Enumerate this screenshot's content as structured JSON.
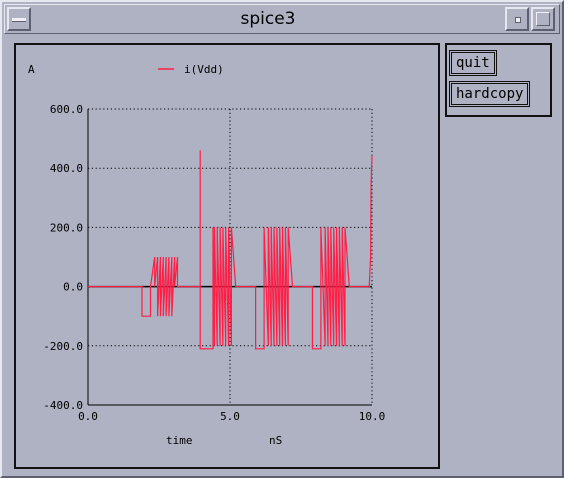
{
  "window": {
    "title": "spice3"
  },
  "buttons": {
    "quit": "quit",
    "hardcopy": "hardcopy"
  },
  "colors": {
    "trace": "#ff1e46",
    "grid": "#000000",
    "background": "#aeb2c3"
  },
  "chart_data": {
    "type": "line",
    "ylabel": "A",
    "xlabel": "time",
    "xunit": "nS",
    "xlim": [
      0,
      10
    ],
    "ylim": [
      -400,
      600
    ],
    "grid": true,
    "legend_position": "top",
    "xticks": [
      "0.0",
      "5.0",
      "10.0"
    ],
    "yticks": [
      "600.0",
      "400.0",
      "200.0",
      "0.0",
      "-200.0",
      "-400.0"
    ],
    "series": [
      {
        "name": "i(Vdd)",
        "x": [
          0,
          1.0,
          1.9,
          1.9,
          2.2,
          2.2,
          2.35,
          2.35,
          2.45,
          2.45,
          2.55,
          2.55,
          2.65,
          2.65,
          2.75,
          2.75,
          2.85,
          2.85,
          2.95,
          2.95,
          3.05,
          3.05,
          3.15,
          3.15,
          3.3,
          3.3,
          3.95,
          3.95,
          3.95,
          4.4,
          4.4,
          4.45,
          4.45,
          4.55,
          4.55,
          4.65,
          4.65,
          4.75,
          4.75,
          4.85,
          4.85,
          4.95,
          4.95,
          5.05,
          5.05,
          5.2,
          5.2,
          5.9,
          5.9,
          6.2,
          6.2,
          6.35,
          6.35,
          6.45,
          6.45,
          6.55,
          6.55,
          6.65,
          6.65,
          6.75,
          6.75,
          6.85,
          6.85,
          6.95,
          6.95,
          7.05,
          7.05,
          7.2,
          7.2,
          7.9,
          7.9,
          8.2,
          8.2,
          8.35,
          8.35,
          8.45,
          8.45,
          8.55,
          8.55,
          8.65,
          8.65,
          8.75,
          8.75,
          8.85,
          8.85,
          8.95,
          8.95,
          9.05,
          9.05,
          9.2,
          9.2,
          9.9,
          9.9,
          9.95,
          9.97,
          10.0
        ],
        "y": [
          0,
          0,
          0,
          -100,
          -100,
          0,
          100,
          0,
          100,
          -100,
          100,
          -100,
          100,
          -100,
          100,
          -100,
          100,
          -100,
          100,
          -100,
          100,
          0,
          100,
          0,
          0,
          0,
          0,
          460,
          -210,
          -210,
          200,
          -200,
          200,
          -200,
          200,
          -200,
          200,
          -200,
          200,
          -200,
          200,
          -200,
          200,
          -200,
          200,
          0,
          0,
          0,
          -210,
          -210,
          200,
          -200,
          200,
          -200,
          200,
          -200,
          200,
          -200,
          200,
          -200,
          200,
          -200,
          200,
          -200,
          200,
          -200,
          200,
          0,
          0,
          0,
          -210,
          -210,
          200,
          -200,
          200,
          -200,
          200,
          -200,
          200,
          -200,
          200,
          -200,
          200,
          -200,
          200,
          -200,
          200,
          -200,
          200,
          0,
          0,
          0,
          0,
          100,
          350,
          440
        ]
      }
    ]
  }
}
